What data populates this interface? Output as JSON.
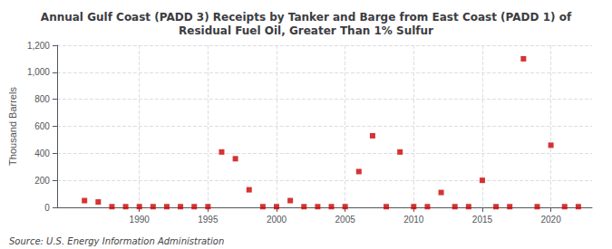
{
  "chart_data": {
    "type": "scatter",
    "title": "Annual Gulf Coast (PADD 3) Receipts by Tanker and Barge from East Coast (PADD 1) of\nResidual Fuel Oil, Greater Than 1% Sulfur",
    "ylabel": "Thousand Barrels",
    "source": "Source: U.S. Energy Information Administration",
    "x": [
      1986,
      1987,
      1988,
      1989,
      1990,
      1991,
      1992,
      1993,
      1994,
      1995,
      1996,
      1997,
      1998,
      1999,
      2000,
      2001,
      2002,
      2003,
      2004,
      2005,
      2006,
      2007,
      2008,
      2009,
      2010,
      2011,
      2012,
      2013,
      2014,
      2015,
      2016,
      2017,
      2018,
      2019,
      2020,
      2021,
      2022
    ],
    "values": [
      50,
      40,
      5,
      5,
      5,
      5,
      5,
      5,
      5,
      5,
      410,
      360,
      130,
      5,
      5,
      50,
      5,
      5,
      5,
      5,
      265,
      530,
      5,
      410,
      5,
      5,
      110,
      5,
      5,
      200,
      5,
      5,
      1100,
      5,
      460,
      5,
      5
    ],
    "color": "#cc0000",
    "marker": "square",
    "xlim": [
      1984,
      2023
    ],
    "xticks": [
      1990,
      1995,
      2000,
      2005,
      2010,
      2015,
      2020
    ],
    "ylim": [
      0,
      1200
    ],
    "yticks": [
      0,
      200,
      400,
      600,
      800,
      {
        "value": 1000,
        "label": "1,000"
      },
      {
        "value": 1200,
        "label": "1,200"
      }
    ],
    "grid": true
  }
}
